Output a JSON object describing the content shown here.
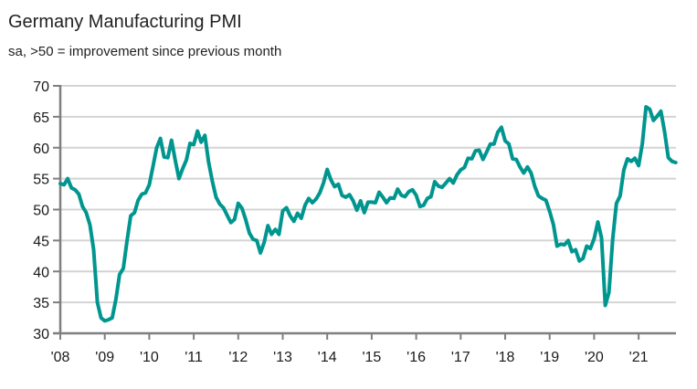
{
  "chart_data": {
    "type": "line",
    "title": "Germany Manufacturing PMI",
    "subtitle": "sa, >50 = improvement since previous month",
    "xlabel": "",
    "ylabel": "",
    "ylim": [
      30,
      70
    ],
    "yticks": [
      30,
      35,
      40,
      45,
      50,
      55,
      60,
      65,
      70
    ],
    "xticks": [
      "'08",
      "'09",
      "'10",
      "'11",
      "'12",
      "'13",
      "'14",
      "'15",
      "'16",
      "'17",
      "'18",
      "'19",
      "'20",
      "'21"
    ],
    "xrange_years": [
      2008,
      2021.85
    ],
    "grid": true,
    "legend": "none",
    "line_color": "#00968f",
    "series": [
      {
        "name": "Germany Manufacturing PMI",
        "start": "2008-01",
        "frequency": "monthly",
        "values": [
          54.2,
          54.0,
          55.0,
          53.5,
          53.2,
          52.5,
          50.5,
          49.5,
          47.5,
          43.5,
          35.0,
          32.5,
          32.0,
          32.2,
          32.5,
          35.5,
          39.5,
          40.5,
          45.0,
          49.0,
          49.5,
          51.5,
          52.5,
          52.7,
          54.0,
          57.0,
          60.0,
          61.5,
          58.5,
          58.4,
          61.2,
          58.0,
          55.0,
          56.6,
          58.0,
          60.7,
          60.5,
          62.7,
          60.9,
          62.0,
          57.7,
          54.6,
          52.0,
          50.9,
          50.3,
          49.1,
          47.9,
          48.4,
          51.0,
          50.2,
          48.4,
          46.2,
          45.2,
          45.0,
          43.0,
          44.7,
          47.4,
          46.0,
          46.8,
          46.0,
          49.8,
          50.3,
          49.0,
          48.1,
          49.4,
          48.6,
          50.7,
          51.8,
          51.1,
          51.7,
          52.7,
          54.3,
          56.5,
          54.8,
          53.7,
          54.1,
          52.3,
          52.0,
          52.4,
          51.4,
          49.9,
          51.4,
          49.5,
          51.2,
          51.2,
          51.1,
          52.8,
          52.0,
          51.1,
          51.9,
          51.8,
          53.3,
          52.3,
          52.1,
          52.9,
          53.2,
          52.3,
          50.5,
          50.7,
          51.8,
          52.1,
          54.5,
          53.8,
          53.6,
          54.3,
          55.0,
          54.3,
          55.6,
          56.4,
          56.8,
          58.3,
          58.2,
          59.5,
          59.6,
          58.1,
          59.3,
          60.6,
          60.6,
          62.5,
          63.3,
          61.1,
          60.6,
          58.2,
          58.1,
          56.9,
          55.9,
          56.9,
          55.9,
          53.7,
          52.2,
          51.8,
          51.5,
          49.7,
          47.6,
          44.1,
          44.4,
          44.3,
          45.0,
          43.2,
          43.5,
          41.7,
          42.1,
          44.1,
          43.7,
          45.3,
          48.0,
          45.4,
          34.5,
          36.6,
          45.2,
          51.0,
          52.2,
          56.4,
          58.2,
          57.8,
          58.3,
          57.1,
          60.7,
          66.6,
          66.2,
          64.4,
          65.1,
          65.9,
          62.6,
          58.4,
          57.8,
          57.6
        ]
      }
    ]
  }
}
